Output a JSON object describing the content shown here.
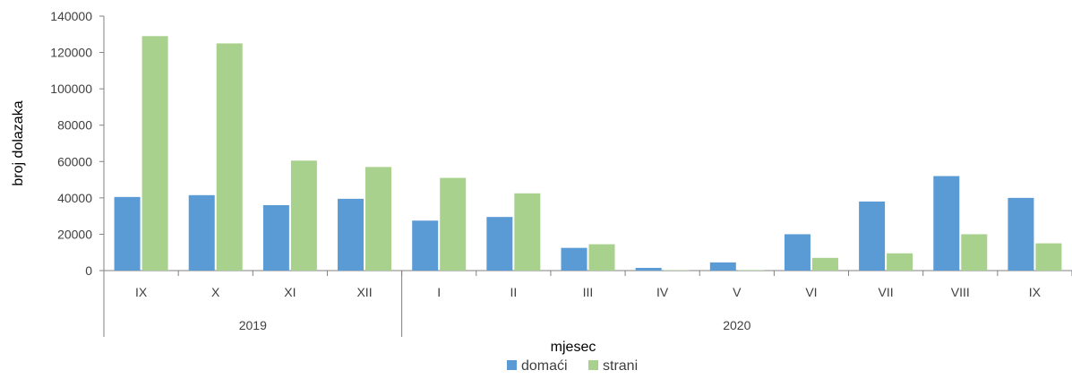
{
  "chart_data": {
    "type": "bar",
    "ylabel": "broj dolazaka",
    "xlabel": "mjesec",
    "ylim": [
      0,
      140000
    ],
    "y_ticks": [
      "0",
      "20000",
      "40000",
      "60000",
      "80000",
      "100000",
      "120000",
      "140000"
    ],
    "grid": false,
    "legend_position": "bottom",
    "categories": [
      "IX",
      "X",
      "XI",
      "XII",
      "I",
      "II",
      "III",
      "IV",
      "V",
      "VI",
      "VII",
      "VIII",
      "IX"
    ],
    "groups": [
      {
        "label": "2019",
        "start": 0,
        "end": 3
      },
      {
        "label": "2020",
        "start": 4,
        "end": 12
      }
    ],
    "series": [
      {
        "name": "domaći",
        "color": "#5B9BD5",
        "values": [
          40500,
          41500,
          36000,
          39500,
          27500,
          29500,
          12500,
          1500,
          4500,
          20000,
          38000,
          52000,
          40000
        ]
      },
      {
        "name": "strani",
        "color": "#A9D18E",
        "values": [
          129000,
          125000,
          60500,
          57000,
          51000,
          42500,
          14500,
          200,
          300,
          7000,
          9500,
          20000,
          15000
        ]
      }
    ]
  }
}
